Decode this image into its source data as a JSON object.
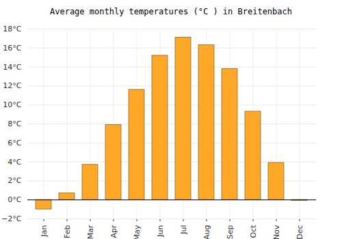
{
  "chart_data": {
    "type": "bar",
    "title": "Average monthly temperatures (°C ) in Breitenbach",
    "categories": [
      "Jan",
      "Feb",
      "Mar",
      "Apr",
      "May",
      "Jun",
      "Jul",
      "Aug",
      "Sep",
      "Oct",
      "Nov",
      "Dec"
    ],
    "values": [
      -1.0,
      0.7,
      3.7,
      7.9,
      11.6,
      15.2,
      17.1,
      16.3,
      13.8,
      9.3,
      3.9,
      -0.1
    ],
    "color": "#ffa726",
    "ylim": [
      -2,
      18
    ],
    "yticks": [
      {
        "value": -2,
        "label": "−2°C"
      },
      {
        "value": 0,
        "label": "0°C"
      },
      {
        "value": 2,
        "label": "2°C"
      },
      {
        "value": 4,
        "label": "4°C"
      },
      {
        "value": 6,
        "label": "6°C"
      },
      {
        "value": 8,
        "label": "8°C"
      },
      {
        "value": 10,
        "label": "10°C"
      },
      {
        "value": 12,
        "label": "12°C"
      },
      {
        "value": 14,
        "label": "14°C"
      },
      {
        "value": 16,
        "label": "16°C"
      },
      {
        "value": 18,
        "label": "18°C"
      }
    ],
    "grid": true
  }
}
